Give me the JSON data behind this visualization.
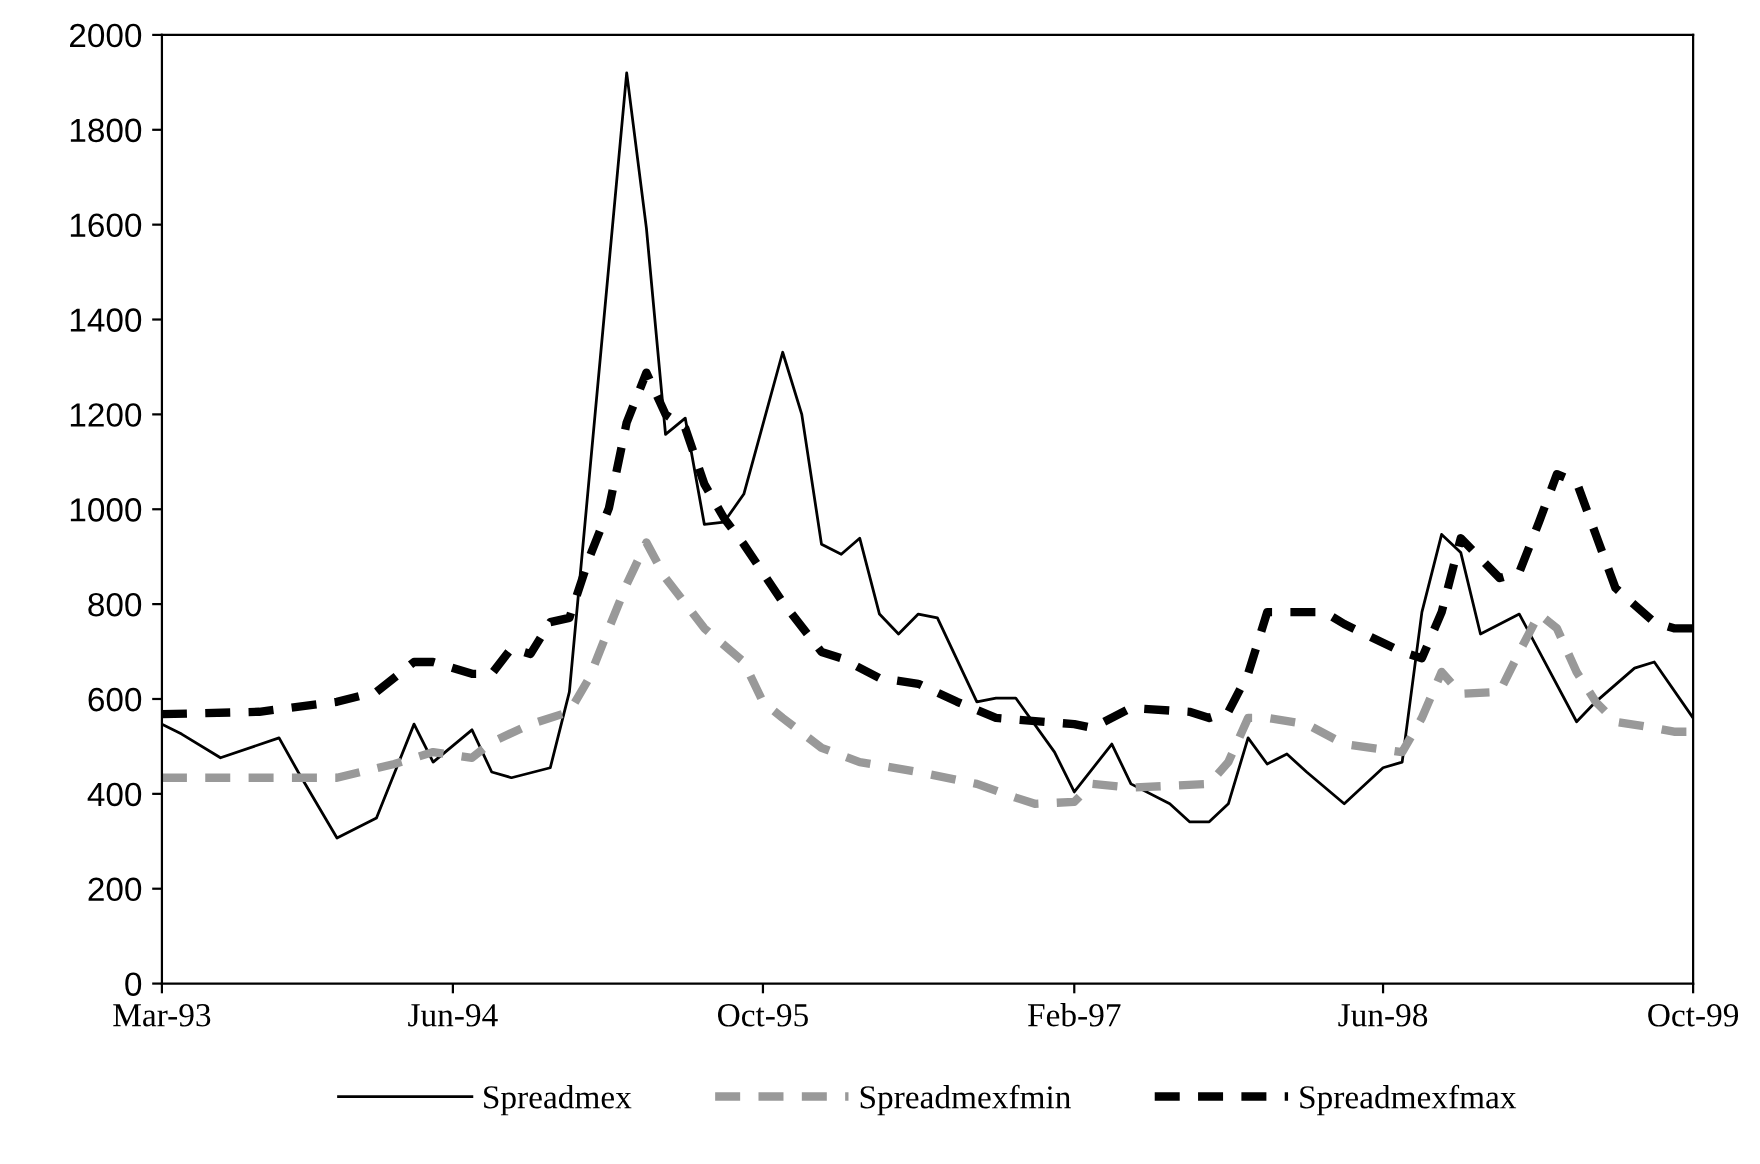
{
  "chart_data": {
    "type": "line",
    "xlim": [
      "1993-03",
      "1999-10"
    ],
    "xticks": [
      {
        "value": "1993-03",
        "label": "Mar-93"
      },
      {
        "value": "1994-06",
        "label": "Jun-94"
      },
      {
        "value": "1995-10",
        "label": "Oct-95"
      },
      {
        "value": "1997-02",
        "label": "Feb-97"
      },
      {
        "value": "1998-06",
        "label": "Jun-98"
      },
      {
        "value": "1999-10",
        "label": "Oct-99"
      }
    ],
    "ylim": [
      0,
      2000
    ],
    "yticks": [
      0,
      200,
      400,
      600,
      800,
      1000,
      1200,
      1400,
      1600,
      1800,
      2000
    ],
    "grid": false,
    "legend": "bottom",
    "series": [
      {
        "name": "Spreadmex",
        "color": "#000000",
        "line_style": "solid",
        "x": [
          "1993-03",
          "1993-04",
          "1993-06",
          "1993-09",
          "1993-10",
          "1993-12",
          "1994-02",
          "1994-04",
          "1994-05",
          "1994-07",
          "1994-08",
          "1994-09",
          "1994-11",
          "1994-12",
          "1995-03",
          "1995-04",
          "1995-05",
          "1995-06",
          "1995-07",
          "1995-08",
          "1995-09",
          "1995-11",
          "1995-12",
          "1996-01",
          "1996-02",
          "1996-03",
          "1996-04",
          "1996-05",
          "1996-06",
          "1996-07",
          "1996-09",
          "1996-10",
          "1996-11",
          "1997-01",
          "1997-02",
          "1997-04",
          "1997-05",
          "1997-07",
          "1997-08",
          "1997-09",
          "1997-10",
          "1997-11",
          "1997-12",
          "1998-01",
          "1998-02",
          "1998-04",
          "1998-06",
          "1998-07",
          "1998-08",
          "1998-09",
          "1998-10",
          "1998-11",
          "1999-01",
          "1999-04",
          "1999-05",
          "1999-07",
          "1999-08",
          "1999-10"
        ],
        "values": [
          547,
          526,
          476,
          518,
          446,
          307,
          349,
          547,
          467,
          535,
          446,
          434,
          455,
          615,
          1920,
          1592,
          1158,
          1192,
          968,
          973,
          1032,
          1331,
          1200,
          926,
          905,
          939,
          779,
          737,
          779,
          771,
          594,
          602,
          602,
          488,
          404,
          505,
          421,
          379,
          341,
          341,
          379,
          518,
          463,
          484,
          446,
          379,
          455,
          467,
          783,
          947,
          909,
          737,
          779,
          552,
          594,
          665,
          678,
          560
        ]
      },
      {
        "name": "Spreadmexfmin",
        "color": "#999999",
        "line_style": "dashed",
        "x": [
          "1993-03",
          "1993-12",
          "1994-03",
          "1994-05",
          "1994-07",
          "1994-08",
          "1994-10",
          "1994-12",
          "1995-01",
          "1995-02",
          "1995-03",
          "1995-04",
          "1995-05",
          "1995-07",
          "1995-09",
          "1995-10",
          "1995-11",
          "1996-01",
          "1996-03",
          "1996-06",
          "1996-09",
          "1996-11",
          "1996-12",
          "1997-02",
          "1997-03",
          "1997-05",
          "1997-09",
          "1997-10",
          "1997-11",
          "1997-12",
          "1998-02",
          "1998-04",
          "1998-07",
          "1998-08",
          "1998-09",
          "1998-10",
          "1998-12",
          "1999-01",
          "1999-02",
          "1999-03",
          "1999-04",
          "1999-05",
          "1999-06",
          "1999-08",
          "1999-09",
          "1999-10"
        ],
        "values": [
          434,
          434,
          463,
          488,
          476,
          509,
          547,
          573,
          644,
          749,
          842,
          930,
          855,
          749,
          678,
          594,
          560,
          497,
          467,
          446,
          421,
          392,
          379,
          383,
          421,
          413,
          421,
          467,
          560,
          560,
          547,
          505,
          488,
          560,
          657,
          611,
          615,
          699,
          779,
          749,
          657,
          594,
          552,
          539,
          531,
          531
        ]
      },
      {
        "name": "Spreadmexfmax",
        "color": "#000000",
        "line_style": "dashed",
        "x": [
          "1993-03",
          "1993-08",
          "1993-12",
          "1994-02",
          "1994-04",
          "1994-05",
          "1994-07",
          "1994-08",
          "1994-09",
          "1994-10",
          "1994-11",
          "1994-12",
          "1995-01",
          "1995-02",
          "1995-03",
          "1995-04",
          "1995-05",
          "1995-06",
          "1995-07",
          "1995-08",
          "1995-09",
          "1995-11",
          "1996-01",
          "1996-02",
          "1996-04",
          "1996-06",
          "1996-08",
          "1996-10",
          "1997-02",
          "1997-03",
          "1997-05",
          "1997-08",
          "1997-09",
          "1997-10",
          "1997-11",
          "1997-12",
          "1998-03",
          "1998-04",
          "1998-07",
          "1998-08",
          "1998-09",
          "1998-10",
          "1998-12",
          "1999-01",
          "1999-02",
          "1999-03",
          "1999-04",
          "1999-05",
          "1999-06",
          "1999-08",
          "1999-09",
          "1999-10"
        ],
        "values": [
          568,
          573,
          594,
          615,
          678,
          678,
          653,
          653,
          707,
          695,
          762,
          771,
          897,
          1002,
          1183,
          1288,
          1200,
          1171,
          1053,
          981,
          926,
          804,
          699,
          686,
          644,
          632,
          594,
          560,
          547,
          539,
          581,
          573,
          560,
          573,
          653,
          783,
          783,
          758,
          699,
          686,
          783,
          939,
          855,
          867,
          973,
          1074,
          1057,
          947,
          834,
          762,
          749,
          749
        ]
      }
    ]
  }
}
